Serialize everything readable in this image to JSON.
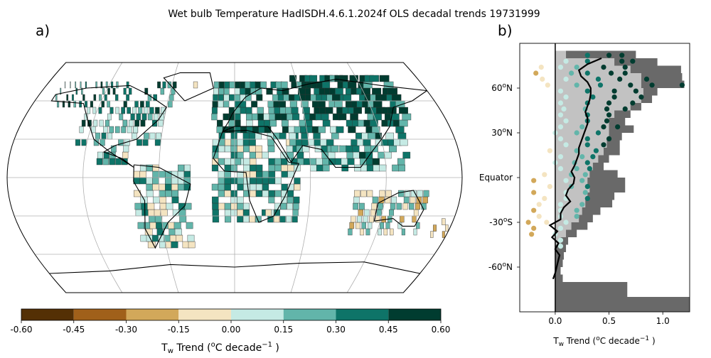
{
  "title": "Wet bulb Temperature HadISDH.4.6.1.2024f OLS decadal trends 19731999",
  "panels": {
    "a": "a)",
    "b": "b)"
  },
  "colorbar": {
    "ticks": [
      "-0.60",
      "-0.45",
      "-0.30",
      "-0.15",
      "0.00",
      "0.15",
      "0.30",
      "0.45",
      "0.60"
    ],
    "colors": [
      "#543005",
      "#a0601a",
      "#d2a85a",
      "#f4e4c1",
      "#c5eae4",
      "#62b5aa",
      "#0e7468",
      "#003c30"
    ],
    "label_main": "T",
    "label_sub": "w",
    "label_rest": " Trend (",
    "label_sup": "o",
    "label_unit": "C decade",
    "label_exp": "−1",
    "label_end": " )"
  },
  "profile_axis": {
    "label_main": "T",
    "label_sub": "w",
    "label_rest": " Trend (",
    "label_sup": "o",
    "label_unit": "C decade",
    "label_exp": "−1",
    "label_end": " )"
  },
  "chart_data": [
    {
      "type": "heatmap",
      "panel": "a",
      "projection": "Robinson",
      "gridlines": true,
      "colorbar_range": [
        -0.6,
        0.6
      ],
      "colorbar_step": 0.15,
      "cell_size_deg": 5,
      "cells": [
        {
          "lat": 65,
          "lon": 30,
          "v": 0.5
        },
        {
          "lat": 65,
          "lon": 60,
          "v": 0.5
        },
        {
          "lat": 60,
          "lon": 90,
          "v": 0.48
        },
        {
          "lat": 55,
          "lon": 40,
          "v": 0.5
        },
        {
          "lat": 55,
          "lon": 0,
          "v": 0.4
        },
        {
          "lat": 50,
          "lon": -100,
          "v": 0.4
        },
        {
          "lat": 45,
          "lon": -80,
          "v": 0.35
        },
        {
          "lat": 40,
          "lon": -95,
          "v": 0.2
        },
        {
          "lat": 35,
          "lon": -85,
          "v": 0.1
        },
        {
          "lat": 40,
          "lon": 115,
          "v": 0.3
        },
        {
          "lat": 30,
          "lon": 110,
          "v": 0.2
        },
        {
          "lat": 20,
          "lon": 78,
          "v": 0.2
        },
        {
          "lat": 10,
          "lon": 0,
          "v": 0.15
        },
        {
          "lat": -5,
          "lon": -50,
          "v": 0.1
        },
        {
          "lat": -15,
          "lon": -50,
          "v": 0.2
        },
        {
          "lat": -30,
          "lon": -60,
          "v": -0.1
        },
        {
          "lat": -30,
          "lon": 25,
          "v": -0.1
        },
        {
          "lat": -25,
          "lon": 135,
          "v": -0.1
        },
        {
          "lat": -35,
          "lon": 145,
          "v": -0.3
        },
        {
          "lat": 35,
          "lon": 135,
          "v": 0.3
        },
        {
          "lat": 70,
          "lon": -40,
          "v": -0.1
        }
      ]
    },
    {
      "type": "scatter",
      "panel": "b",
      "orientation": "horizontal",
      "xlim": [
        -0.33,
        1.25
      ],
      "ylim": [
        -90,
        90
      ],
      "xticks": [
        "0.0",
        "0.5",
        "1.0"
      ],
      "yticks": [
        {
          "value": 60,
          "label_main": "60",
          "label_sup": "o",
          "label_dir": "N"
        },
        {
          "value": 30,
          "label_main": "30",
          "label_sup": "o",
          "label_dir": "N"
        },
        {
          "value": 0,
          "label_main": "Equator",
          "label_sup": "",
          "label_dir": ""
        },
        {
          "value": -30,
          "label_main": "-30",
          "label_sup": "o",
          "label_dir": "S"
        },
        {
          "value": -60,
          "label_main": "-60",
          "label_sup": "o",
          "label_dir": "N"
        }
      ],
      "zonal_max_bars": [
        {
          "lat": 82.5,
          "v": 0.75
        },
        {
          "lat": 77.5,
          "v": 0.95
        },
        {
          "lat": 72.5,
          "v": 1.17
        },
        {
          "lat": 67.5,
          "v": 1.18
        },
        {
          "lat": 62.5,
          "v": 1.2
        },
        {
          "lat": 57.5,
          "v": 0.95
        },
        {
          "lat": 52.5,
          "v": 0.9
        },
        {
          "lat": 47.5,
          "v": 0.8
        },
        {
          "lat": 42.5,
          "v": 0.7
        },
        {
          "lat": 37.5,
          "v": 0.65
        },
        {
          "lat": 32.5,
          "v": 0.73
        },
        {
          "lat": 27.5,
          "v": 0.62
        },
        {
          "lat": 22.5,
          "v": 0.6
        },
        {
          "lat": 17.5,
          "v": 0.6
        },
        {
          "lat": 12.5,
          "v": 0.5
        },
        {
          "lat": 7.5,
          "v": 0.45
        },
        {
          "lat": 2.5,
          "v": 0.58
        },
        {
          "lat": -2.5,
          "v": 0.65
        },
        {
          "lat": -7.5,
          "v": 0.65
        },
        {
          "lat": -12.5,
          "v": 0.55
        },
        {
          "lat": -17.5,
          "v": 0.53
        },
        {
          "lat": -22.5,
          "v": 0.42
        },
        {
          "lat": -27.5,
          "v": 0.35
        },
        {
          "lat": -32.5,
          "v": 0.3
        },
        {
          "lat": -37.5,
          "v": 0.2
        },
        {
          "lat": -42.5,
          "v": 0.12
        },
        {
          "lat": -47.5,
          "v": 0.1
        },
        {
          "lat": -52.5,
          "v": 0.08
        },
        {
          "lat": -57.5,
          "v": 0.07
        },
        {
          "lat": -62.5,
          "v": 0.05
        },
        {
          "lat": -67.5,
          "v": 0.07
        },
        {
          "lat": -72.5,
          "v": 0.67
        },
        {
          "lat": -77.5,
          "v": 0.67
        },
        {
          "lat": -82.5,
          "v": 1.25
        },
        {
          "lat": -87.5,
          "v": 1.25
        }
      ],
      "zonal_mean_bars": [
        {
          "lat": 82.5,
          "v": 0.1
        },
        {
          "lat": 77.5,
          "v": 0.55
        },
        {
          "lat": 72.5,
          "v": 0.7
        },
        {
          "lat": 67.5,
          "v": 0.8
        },
        {
          "lat": 62.5,
          "v": 0.8
        },
        {
          "lat": 57.5,
          "v": 0.82
        },
        {
          "lat": 52.5,
          "v": 0.8
        },
        {
          "lat": 47.5,
          "v": 0.7
        },
        {
          "lat": 42.5,
          "v": 0.55
        },
        {
          "lat": 37.5,
          "v": 0.5
        },
        {
          "lat": 32.5,
          "v": 0.5
        },
        {
          "lat": 27.5,
          "v": 0.5
        },
        {
          "lat": 22.5,
          "v": 0.48
        },
        {
          "lat": 17.5,
          "v": 0.45
        },
        {
          "lat": 12.5,
          "v": 0.4
        },
        {
          "lat": 7.5,
          "v": 0.35
        },
        {
          "lat": 2.5,
          "v": 0.32
        },
        {
          "lat": -2.5,
          "v": 0.3
        },
        {
          "lat": -7.5,
          "v": 0.32
        },
        {
          "lat": -12.5,
          "v": 0.3
        },
        {
          "lat": -17.5,
          "v": 0.28
        },
        {
          "lat": -22.5,
          "v": 0.25
        },
        {
          "lat": -27.5,
          "v": 0.22
        },
        {
          "lat": -32.5,
          "v": 0.15
        },
        {
          "lat": -37.5,
          "v": 0.1
        },
        {
          "lat": -42.5,
          "v": 0.05
        }
      ],
      "points": [
        {
          "lat": 82,
          "v": 0.3
        },
        {
          "lat": 82,
          "v": 0.5
        },
        {
          "lat": 82,
          "v": 0.62
        },
        {
          "lat": 78,
          "v": 0.1
        },
        {
          "lat": 78,
          "v": 0.3
        },
        {
          "lat": 78,
          "v": 0.62
        },
        {
          "lat": 78,
          "v": 0.72
        },
        {
          "lat": 74,
          "v": -0.13
        },
        {
          "lat": 74,
          "v": 0.05
        },
        {
          "lat": 74,
          "v": 0.2
        },
        {
          "lat": 74,
          "v": 0.45
        },
        {
          "lat": 74,
          "v": 0.65
        },
        {
          "lat": 70,
          "v": -0.18
        },
        {
          "lat": 70,
          "v": 0.15
        },
        {
          "lat": 70,
          "v": 0.3
        },
        {
          "lat": 70,
          "v": 0.52
        },
        {
          "lat": 70,
          "v": 0.65
        },
        {
          "lat": 66,
          "v": -0.12
        },
        {
          "lat": 66,
          "v": 0.1
        },
        {
          "lat": 66,
          "v": 0.4
        },
        {
          "lat": 66,
          "v": 0.6
        },
        {
          "lat": 66,
          "v": 0.85
        },
        {
          "lat": 62,
          "v": -0.07
        },
        {
          "lat": 62,
          "v": 0.2
        },
        {
          "lat": 62,
          "v": 0.42
        },
        {
          "lat": 62,
          "v": 0.7
        },
        {
          "lat": 62,
          "v": 1.18
        },
        {
          "lat": 62,
          "v": 0.9
        },
        {
          "lat": 58,
          "v": 0.05
        },
        {
          "lat": 58,
          "v": 0.3
        },
        {
          "lat": 58,
          "v": 0.55
        },
        {
          "lat": 58,
          "v": 0.75
        },
        {
          "lat": 54,
          "v": 0.1
        },
        {
          "lat": 54,
          "v": 0.35
        },
        {
          "lat": 54,
          "v": 0.55
        },
        {
          "lat": 54,
          "v": 0.8
        },
        {
          "lat": 50,
          "v": 0.05
        },
        {
          "lat": 50,
          "v": 0.3
        },
        {
          "lat": 50,
          "v": 0.5
        },
        {
          "lat": 50,
          "v": 0.72
        },
        {
          "lat": 46,
          "v": 0.08
        },
        {
          "lat": 46,
          "v": 0.28
        },
        {
          "lat": 46,
          "v": 0.48
        },
        {
          "lat": 46,
          "v": 0.65
        },
        {
          "lat": 42,
          "v": 0.05
        },
        {
          "lat": 42,
          "v": 0.3
        },
        {
          "lat": 42,
          "v": 0.5
        },
        {
          "lat": 38,
          "v": 0.1
        },
        {
          "lat": 38,
          "v": 0.3
        },
        {
          "lat": 38,
          "v": 0.48
        },
        {
          "lat": 34,
          "v": 0.05
        },
        {
          "lat": 34,
          "v": 0.25
        },
        {
          "lat": 34,
          "v": 0.45
        },
        {
          "lat": 34,
          "v": 0.58
        },
        {
          "lat": 30,
          "v": 0.0
        },
        {
          "lat": 30,
          "v": 0.2
        },
        {
          "lat": 30,
          "v": 0.4
        },
        {
          "lat": 26,
          "v": 0.05
        },
        {
          "lat": 26,
          "v": 0.3
        },
        {
          "lat": 26,
          "v": 0.5
        },
        {
          "lat": 22,
          "v": 0.1
        },
        {
          "lat": 22,
          "v": 0.3
        },
        {
          "lat": 22,
          "v": 0.45
        },
        {
          "lat": 18,
          "v": -0.05
        },
        {
          "lat": 18,
          "v": 0.2
        },
        {
          "lat": 18,
          "v": 0.38
        },
        {
          "lat": 14,
          "v": 0.05
        },
        {
          "lat": 14,
          "v": 0.25
        },
        {
          "lat": 14,
          "v": 0.35
        },
        {
          "lat": 10,
          "v": 0.0
        },
        {
          "lat": 10,
          "v": 0.18
        },
        {
          "lat": 10,
          "v": 0.3
        },
        {
          "lat": 6,
          "v": 0.05
        },
        {
          "lat": 6,
          "v": 0.2
        },
        {
          "lat": 6,
          "v": 0.32
        },
        {
          "lat": 2,
          "v": -0.1
        },
        {
          "lat": 2,
          "v": 0.15
        },
        {
          "lat": 2,
          "v": 0.28
        },
        {
          "lat": -2,
          "v": -0.2
        },
        {
          "lat": -2,
          "v": 0.1
        },
        {
          "lat": -2,
          "v": 0.25
        },
        {
          "lat": -6,
          "v": -0.05
        },
        {
          "lat": -6,
          "v": 0.15
        },
        {
          "lat": -6,
          "v": 0.3
        },
        {
          "lat": -10,
          "v": -0.2
        },
        {
          "lat": -10,
          "v": 0.1
        },
        {
          "lat": -10,
          "v": 0.28
        },
        {
          "lat": -14,
          "v": -0.1
        },
        {
          "lat": -14,
          "v": 0.1
        },
        {
          "lat": -14,
          "v": 0.3
        },
        {
          "lat": -18,
          "v": -0.15
        },
        {
          "lat": -18,
          "v": 0.05
        },
        {
          "lat": -18,
          "v": 0.25
        },
        {
          "lat": -22,
          "v": -0.2
        },
        {
          "lat": -22,
          "v": 0.05
        },
        {
          "lat": -22,
          "v": 0.2
        },
        {
          "lat": -26,
          "v": -0.15
        },
        {
          "lat": -26,
          "v": 0.05
        },
        {
          "lat": -26,
          "v": 0.2
        },
        {
          "lat": -30,
          "v": -0.25
        },
        {
          "lat": -30,
          "v": -0.08
        },
        {
          "lat": -30,
          "v": 0.1
        },
        {
          "lat": -34,
          "v": -0.2
        },
        {
          "lat": -34,
          "v": 0.05
        },
        {
          "lat": -38,
          "v": -0.22
        },
        {
          "lat": -38,
          "v": 0.0
        },
        {
          "lat": -42,
          "v": 0.05
        },
        {
          "lat": -46,
          "v": 0.05
        }
      ],
      "mean_line": [
        {
          "lat": 80,
          "v": 0.43
        },
        {
          "lat": 76,
          "v": 0.3
        },
        {
          "lat": 72,
          "v": 0.22
        },
        {
          "lat": 68,
          "v": 0.24
        },
        {
          "lat": 64,
          "v": 0.3
        },
        {
          "lat": 60,
          "v": 0.33
        },
        {
          "lat": 56,
          "v": 0.33
        },
        {
          "lat": 52,
          "v": 0.32
        },
        {
          "lat": 48,
          "v": 0.3
        },
        {
          "lat": 44,
          "v": 0.28
        },
        {
          "lat": 40,
          "v": 0.3
        },
        {
          "lat": 36,
          "v": 0.3
        },
        {
          "lat": 32,
          "v": 0.28
        },
        {
          "lat": 28,
          "v": 0.26
        },
        {
          "lat": 24,
          "v": 0.24
        },
        {
          "lat": 20,
          "v": 0.22
        },
        {
          "lat": 16,
          "v": 0.22
        },
        {
          "lat": 12,
          "v": 0.2
        },
        {
          "lat": 8,
          "v": 0.18
        },
        {
          "lat": 4,
          "v": 0.15
        },
        {
          "lat": 0,
          "v": 0.18
        },
        {
          "lat": -4,
          "v": 0.17
        },
        {
          "lat": -8,
          "v": 0.12
        },
        {
          "lat": -12,
          "v": 0.1
        },
        {
          "lat": -16,
          "v": 0.14
        },
        {
          "lat": -20,
          "v": 0.08
        },
        {
          "lat": -24,
          "v": 0.05
        },
        {
          "lat": -28,
          "v": 0.05
        },
        {
          "lat": -32,
          "v": -0.05
        },
        {
          "lat": -36,
          "v": 0.02
        },
        {
          "lat": -40,
          "v": -0.03
        },
        {
          "lat": -44,
          "v": 0.03
        },
        {
          "lat": -48,
          "v": 0.0
        },
        {
          "lat": -52,
          "v": 0.04
        },
        {
          "lat": -58,
          "v": 0.02
        },
        {
          "lat": -64,
          "v": 0.0
        },
        {
          "lat": -68,
          "v": -0.02
        }
      ],
      "zero_line": 0
    }
  ]
}
